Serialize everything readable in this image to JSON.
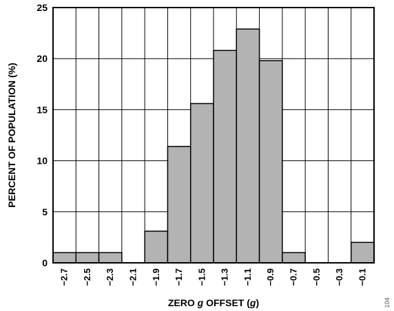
{
  "chart_data": {
    "type": "bar",
    "categories": [
      "−2.7",
      "−2.5",
      "−2.3",
      "−2.1",
      "−1.9",
      "−1.7",
      "−1.5",
      "−1.3",
      "−1.1",
      "−0.9",
      "−0.7",
      "−0.5",
      "−0.3",
      "−0.1"
    ],
    "values": [
      1.0,
      1.0,
      1.0,
      0,
      3.1,
      11.4,
      15.6,
      20.8,
      22.9,
      19.8,
      1.0,
      0,
      0,
      2.0
    ],
    "xlabel_parts": [
      "ZERO ",
      "g",
      " OFFSET (",
      "g",
      ")"
    ],
    "ylabel": "PERCENT OF POPULATION (%)",
    "ylim": [
      0,
      25
    ],
    "yticks": [
      "0",
      "5",
      "10",
      "15",
      "20",
      "25"
    ],
    "grid": true,
    "bar_color": "#b3b3b3",
    "figure_id": "104"
  }
}
